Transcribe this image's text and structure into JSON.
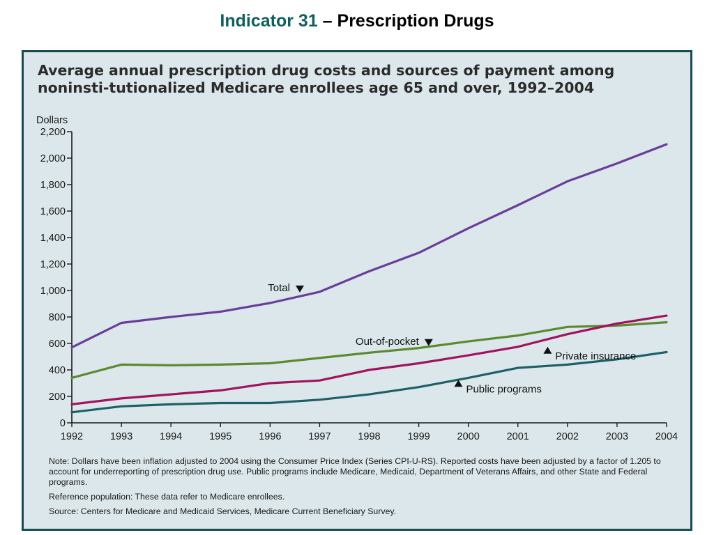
{
  "header": {
    "indicator": "Indicator 31",
    "topic": " – Prescription Drugs"
  },
  "colors": {
    "panel_background": "#dbe7ea",
    "panel_border": "#164c52",
    "title_accent": "#0f5f5f"
  },
  "notes": {
    "note": "Note:  Dollars have been inflation adjusted to 2004 using the Consumer Price Index (Series CPI-U-RS). Reported costs have been adjusted by a factor of 1.205 to account for underreporting of prescription drug use.  Public programs include Medicare, Medicaid, Department of Veterans Affairs, and other State and Federal programs.",
    "reference": "Reference population: These data refer to Medicare enrollees.",
    "source": "Source:  Centers for Medicare and Medicaid Services, Medicare Current Beneficiary Survey."
  },
  "chart_data": {
    "type": "line",
    "title": "Average annual prescription drug costs and sources of payment among noninsti-tutionalized Medicare enrollees age 65 and over, 1992–2004",
    "ylabel": "Dollars",
    "xlabel": "",
    "ylim": [
      0,
      2200
    ],
    "yticks": [
      0,
      200,
      400,
      600,
      800,
      1000,
      1200,
      1400,
      1600,
      1800,
      2000,
      2200
    ],
    "ytick_labels": [
      "0",
      "200",
      "400",
      "600",
      "800",
      "1,000",
      "1,200",
      "1,400",
      "1,600",
      "1,800",
      "2,000",
      "2,200"
    ],
    "x": [
      "1992",
      "1993",
      "1994",
      "1995",
      "1996",
      "1997",
      "1998",
      "1999",
      "2000",
      "2001",
      "2002",
      "2003",
      "2004"
    ],
    "grid": false,
    "series": [
      {
        "name": "Total",
        "color": "#6a3d9a",
        "marker": "down",
        "values": [
          570,
          755,
          800,
          840,
          905,
          990,
          1145,
          1285,
          1470,
          1645,
          1825,
          1960,
          2105
        ]
      },
      {
        "name": "Out-of-pocket",
        "color": "#5b8a2e",
        "marker": "down",
        "values": [
          340,
          440,
          435,
          440,
          450,
          490,
          530,
          565,
          615,
          660,
          725,
          735,
          760
        ]
      },
      {
        "name": "Private insurance",
        "color": "#a2125f",
        "marker": "up",
        "values": [
          140,
          185,
          215,
          245,
          300,
          320,
          400,
          450,
          510,
          575,
          670,
          750,
          810
        ]
      },
      {
        "name": "Public programs",
        "color": "#1e6068",
        "marker": "up",
        "values": [
          80,
          125,
          140,
          150,
          150,
          175,
          215,
          270,
          340,
          415,
          440,
          480,
          535
        ]
      }
    ],
    "annotations": [
      {
        "series": "Total",
        "x": "1996.6",
        "y": 985,
        "text": "Total"
      },
      {
        "series": "Out-of-pocket",
        "x": "1999.2",
        "y": 580,
        "text": "Out-of-pocket"
      },
      {
        "series": "Private insurance",
        "x": "2001.6",
        "y": 575,
        "text": "Private insurance"
      },
      {
        "series": "Public programs",
        "x": "1999.8",
        "y": 325,
        "text": "Public programs"
      }
    ]
  }
}
